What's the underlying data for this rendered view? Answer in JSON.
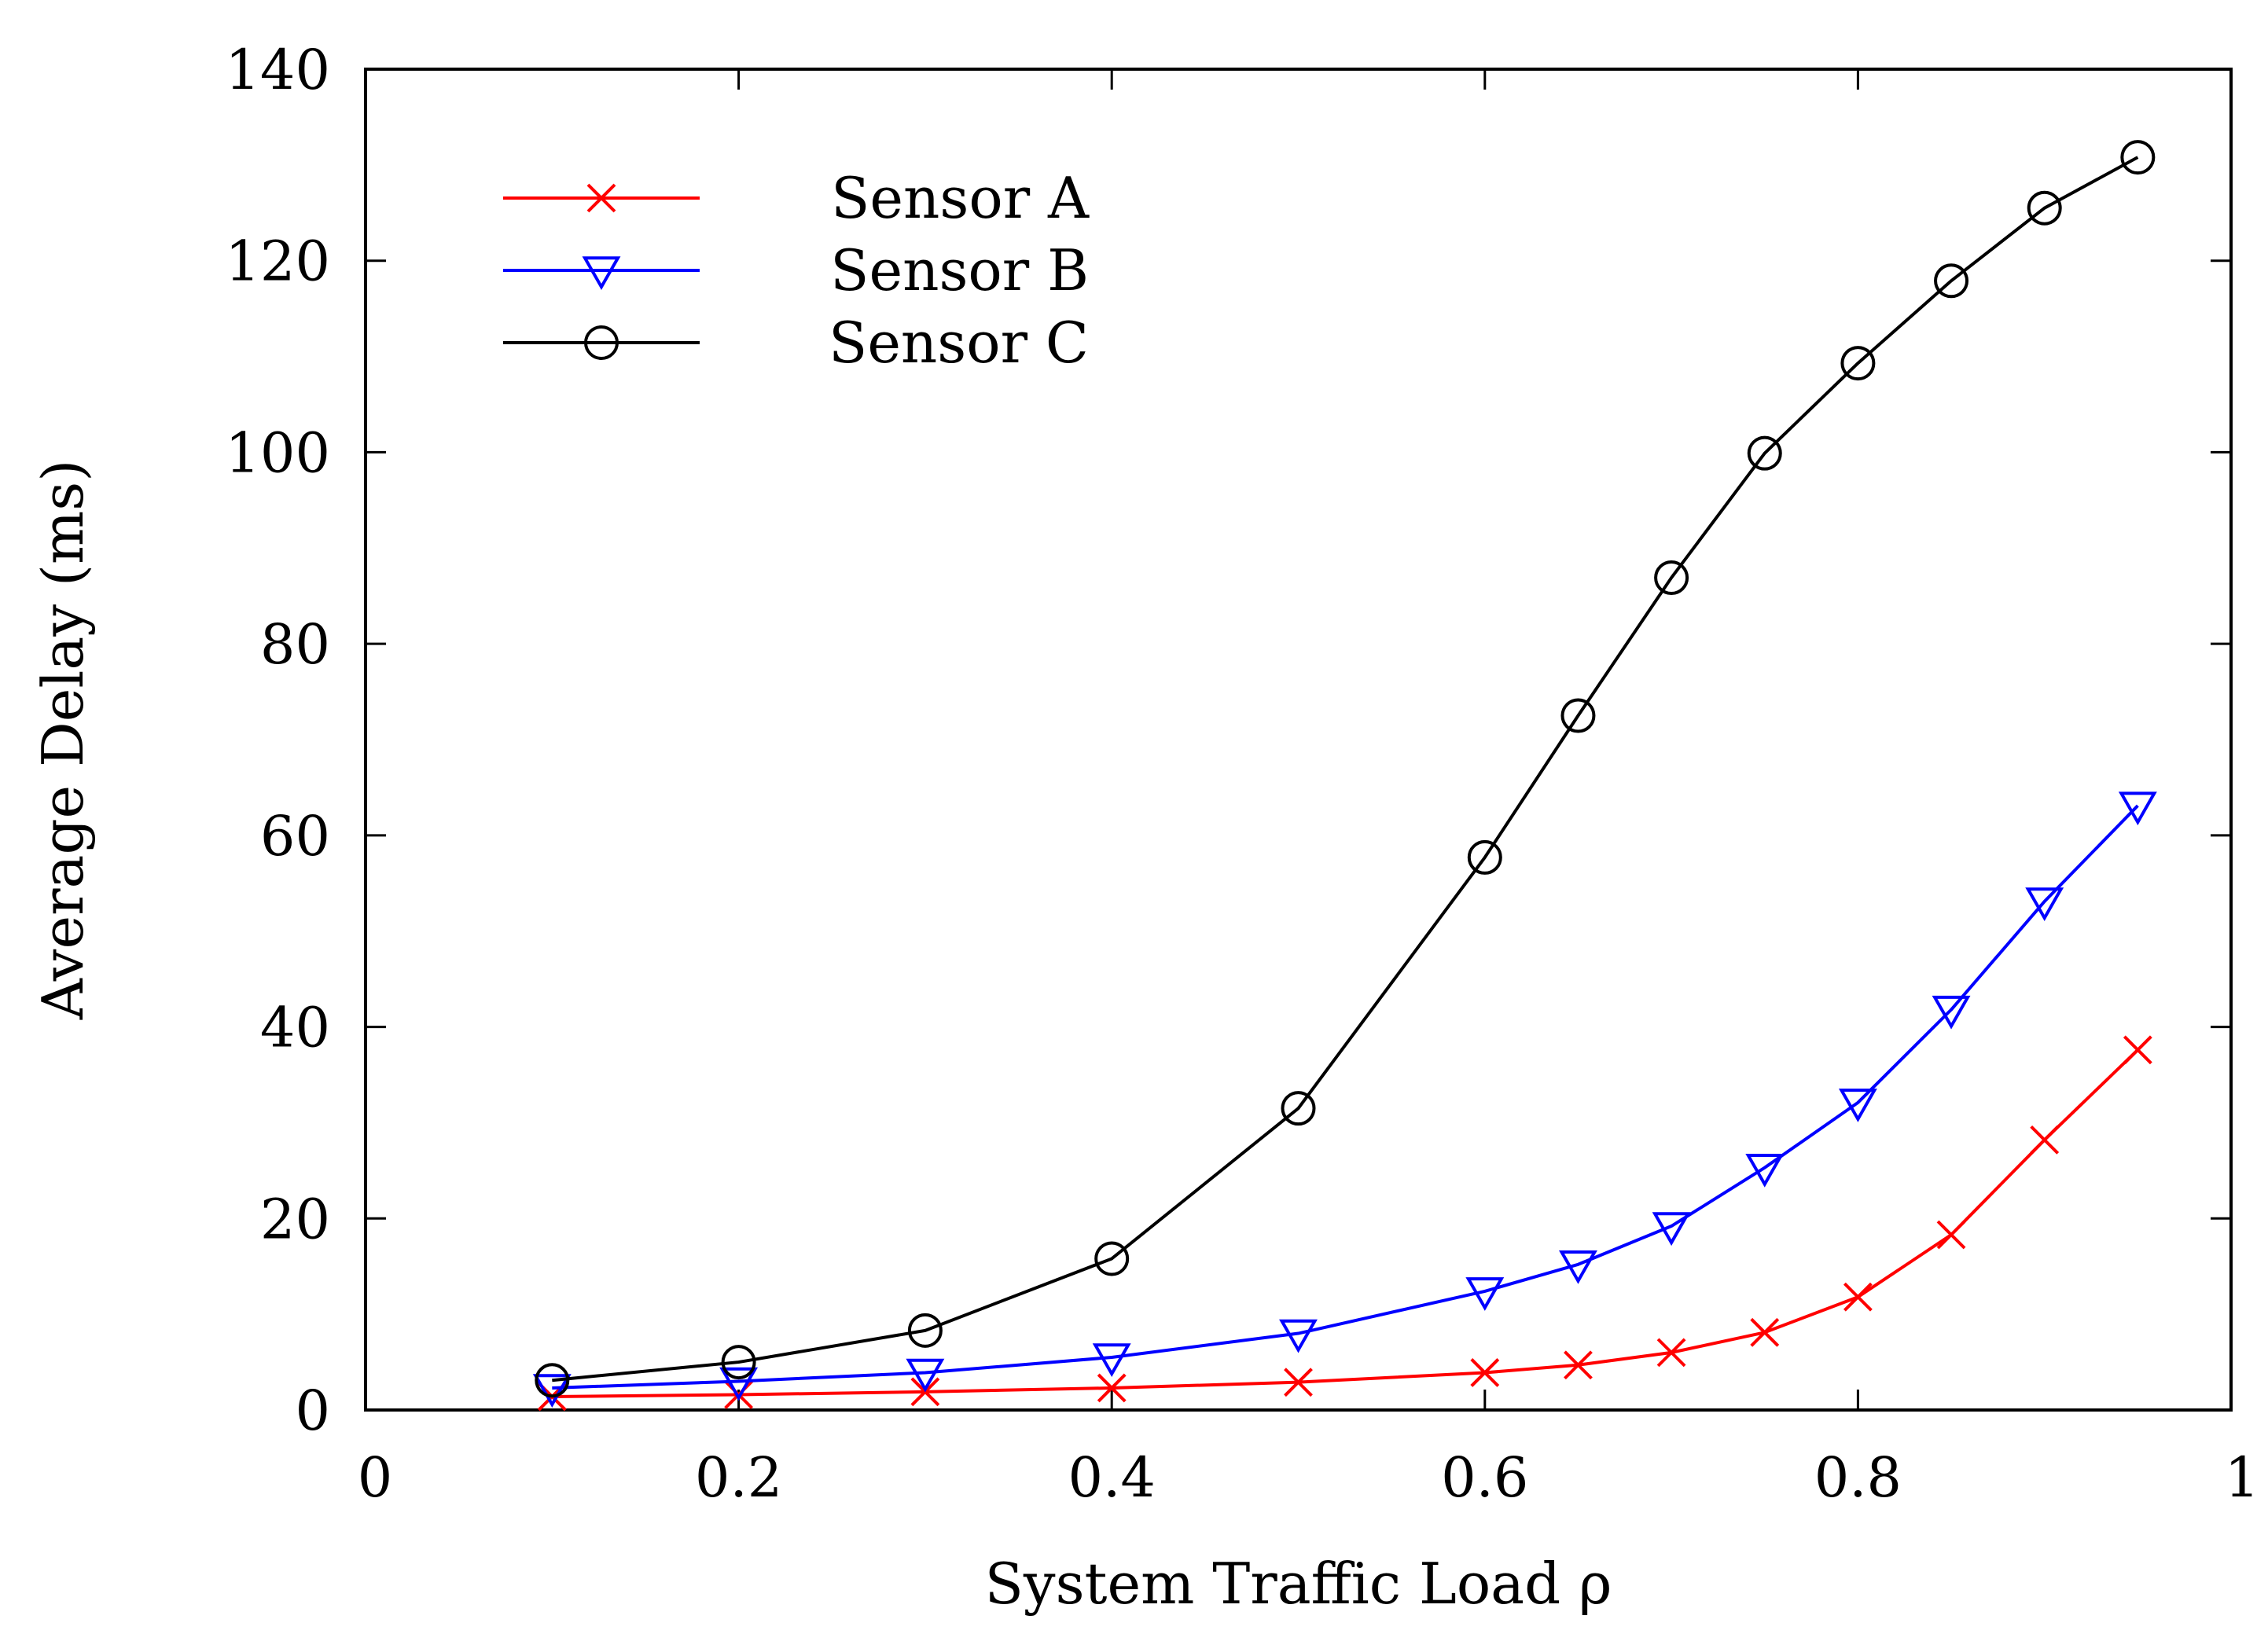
{
  "chart_data": {
    "type": "line",
    "title": "",
    "xlabel": "System Traffic Load ρ",
    "ylabel": "Average Delay (ms)",
    "xlim": [
      0,
      1
    ],
    "ylim": [
      0,
      140
    ],
    "xticks": [
      0,
      0.2,
      0.4,
      0.6,
      0.8,
      1
    ],
    "xtick_labels": [
      "0",
      "0.2",
      "0.4",
      "0.6",
      "0.8",
      "1"
    ],
    "yticks": [
      0,
      20,
      40,
      60,
      80,
      100,
      120,
      140
    ],
    "ytick_labels": [
      "0",
      "20",
      "40",
      "60",
      "80",
      "100",
      "120",
      "140"
    ],
    "grid": false,
    "legend_position": "top-left",
    "x": [
      0.1,
      0.2,
      0.3,
      0.4,
      0.5,
      0.6,
      0.65,
      0.7,
      0.75,
      0.8,
      0.85,
      0.9,
      0.95
    ],
    "series": [
      {
        "name": "Sensor A",
        "color": "#ff0000",
        "marker": "x",
        "values": [
          1.4,
          1.6,
          1.9,
          2.3,
          2.9,
          3.9,
          4.7,
          6.0,
          8.1,
          11.8,
          18.3,
          28.2,
          37.6
        ]
      },
      {
        "name": "Sensor B",
        "color": "#0000ff",
        "marker": "triangle-down",
        "values": [
          2.3,
          3.0,
          3.9,
          5.5,
          8.0,
          12.4,
          15.2,
          19.2,
          25.3,
          32.1,
          41.8,
          53.1,
          63.1
        ]
      },
      {
        "name": "Sensor C",
        "color": "#000000",
        "marker": "circle",
        "values": [
          3.1,
          5.0,
          8.3,
          15.8,
          31.5,
          57.7,
          72.5,
          86.9,
          99.9,
          109.3,
          117.9,
          125.5,
          130.8
        ]
      }
    ]
  }
}
